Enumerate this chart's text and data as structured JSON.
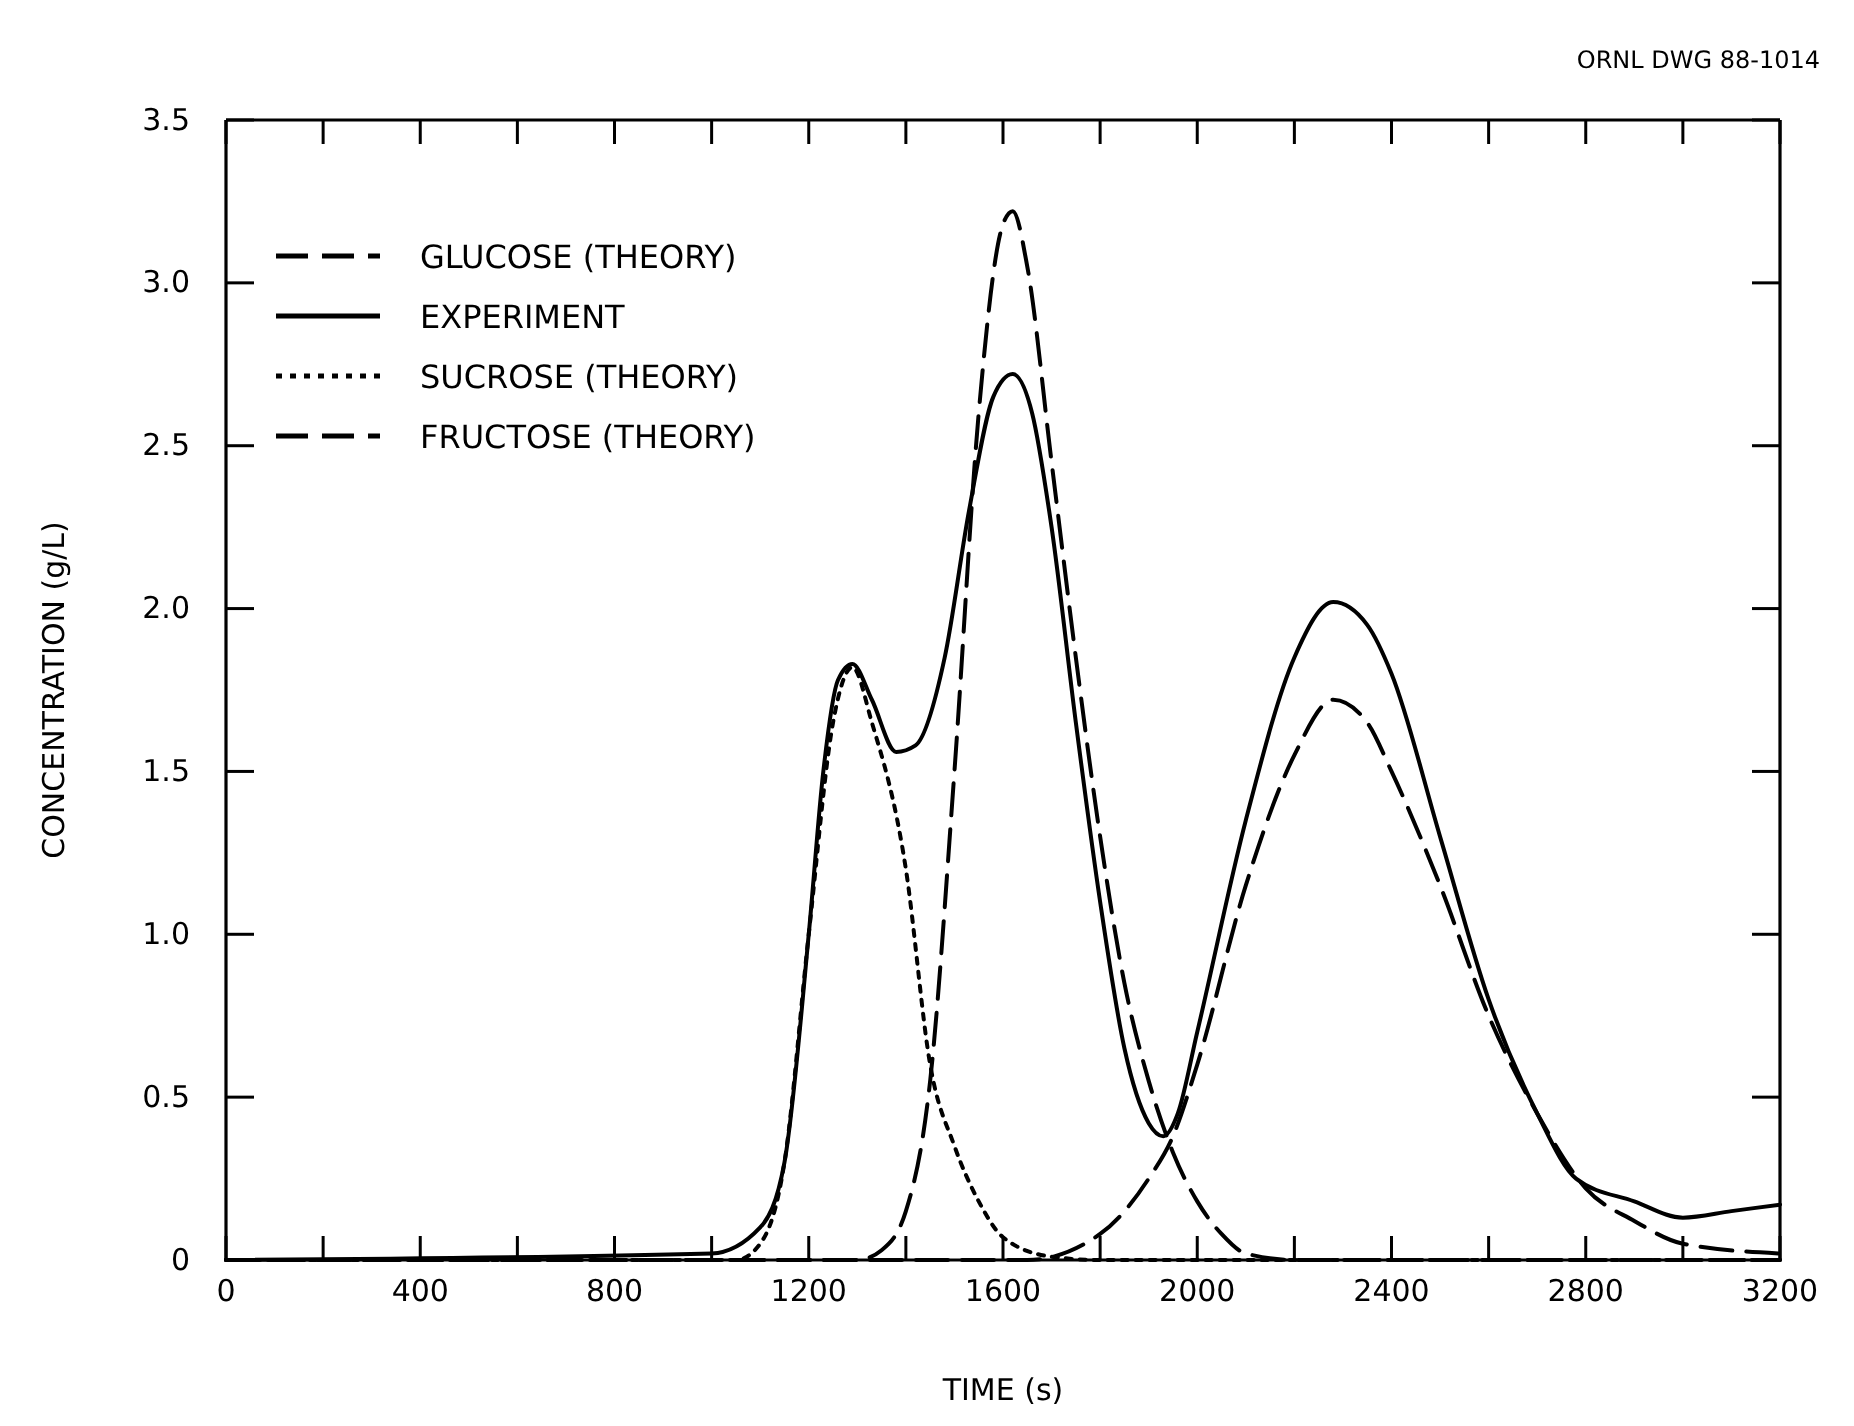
{
  "chart_data": {
    "type": "line",
    "xlabel": "TIME (s)",
    "ylabel": "CONCENTRATION (g/L)",
    "annotations": [
      "ORNL DWG 88-1014"
    ],
    "xlim": [
      0,
      3200
    ],
    "ylim": [
      0,
      3.5
    ],
    "xticks": [
      0,
      {
        "value": 200,
        "label": null
      },
      400,
      {
        "value": 600,
        "label": null
      },
      800,
      {
        "value": 1000,
        "label": null
      },
      1200,
      {
        "value": 1400,
        "label": null
      },
      1600,
      {
        "value": 1800,
        "label": null
      },
      2000,
      {
        "value": 2200,
        "label": null
      },
      2400,
      {
        "value": 2600,
        "label": null
      },
      2800,
      {
        "value": 3000,
        "label": null
      },
      3200
    ],
    "yticks": [
      0,
      0.5,
      {
        "value": 1,
        "label": "1.0"
      },
      1.5,
      {
        "value": 2,
        "label": "2.0"
      },
      2.5,
      {
        "value": 3,
        "label": "3.0"
      },
      3.5
    ],
    "grid": false,
    "legend": "top left",
    "marker": "none",
    "series": [
      {
        "name": "GLUCOSE (THEORY)",
        "color": "#000000",
        "line_style": "dashed",
        "x": [
          0,
          1300,
          1350,
          1400,
          1450,
          1500,
          1550,
          1600,
          1620,
          1650,
          1700,
          1750,
          1800,
          1850,
          1900,
          1950,
          2000,
          2050,
          2100,
          2200,
          3200
        ],
        "values": [
          0,
          0,
          0.03,
          0.15,
          0.55,
          1.5,
          2.6,
          3.18,
          3.22,
          3.05,
          2.45,
          1.85,
          1.3,
          0.85,
          0.55,
          0.33,
          0.18,
          0.08,
          0.02,
          0,
          0
        ]
      },
      {
        "name": "EXPERIMENT",
        "color": "#000000",
        "line_style": "solid",
        "x": [
          0,
          1000,
          1100,
          1150,
          1200,
          1230,
          1260,
          1290,
          1330,
          1380,
          1420,
          1480,
          1530,
          1580,
          1620,
          1660,
          1700,
          1750,
          1800,
          1850,
          1900,
          1930,
          1960,
          2000,
          2100,
          2200,
          2280,
          2350,
          2400,
          2500,
          2600,
          2700,
          2780,
          2900,
          3000,
          3100,
          3200
        ],
        "values": [
          0,
          0.02,
          0.1,
          0.3,
          1.0,
          1.5,
          1.78,
          1.83,
          1.72,
          1.56,
          1.58,
          1.85,
          2.3,
          2.65,
          2.72,
          2.6,
          2.25,
          1.65,
          1.1,
          0.65,
          0.42,
          0.38,
          0.45,
          0.7,
          1.35,
          1.85,
          2.02,
          1.95,
          1.8,
          1.3,
          0.8,
          0.45,
          0.25,
          0.18,
          0.13,
          0.15,
          0.17
        ]
      },
      {
        "name": "SUCROSE (THEORY)",
        "color": "#000000",
        "line_style": "dotted",
        "x": [
          0,
          1050,
          1100,
          1150,
          1200,
          1250,
          1290,
          1330,
          1400,
          1450,
          1500,
          1550,
          1600,
          1700,
          1800,
          3200
        ],
        "values": [
          0,
          0,
          0.05,
          0.3,
          1.0,
          1.65,
          1.82,
          1.65,
          1.2,
          0.6,
          0.35,
          0.18,
          0.07,
          0.01,
          0,
          0
        ]
      },
      {
        "name": "FRUCTOSE (THEORY)",
        "color": "#000000",
        "line_style": "dashed",
        "x": [
          0,
          1650,
          1800,
          1900,
          1950,
          2000,
          2100,
          2200,
          2280,
          2350,
          2400,
          2500,
          2600,
          2700,
          2800,
          2900,
          3000,
          3200
        ],
        "values": [
          0,
          0,
          0.08,
          0.25,
          0.38,
          0.6,
          1.15,
          1.55,
          1.72,
          1.65,
          1.5,
          1.15,
          0.75,
          0.45,
          0.22,
          0.12,
          0.05,
          0.02
        ]
      }
    ]
  }
}
